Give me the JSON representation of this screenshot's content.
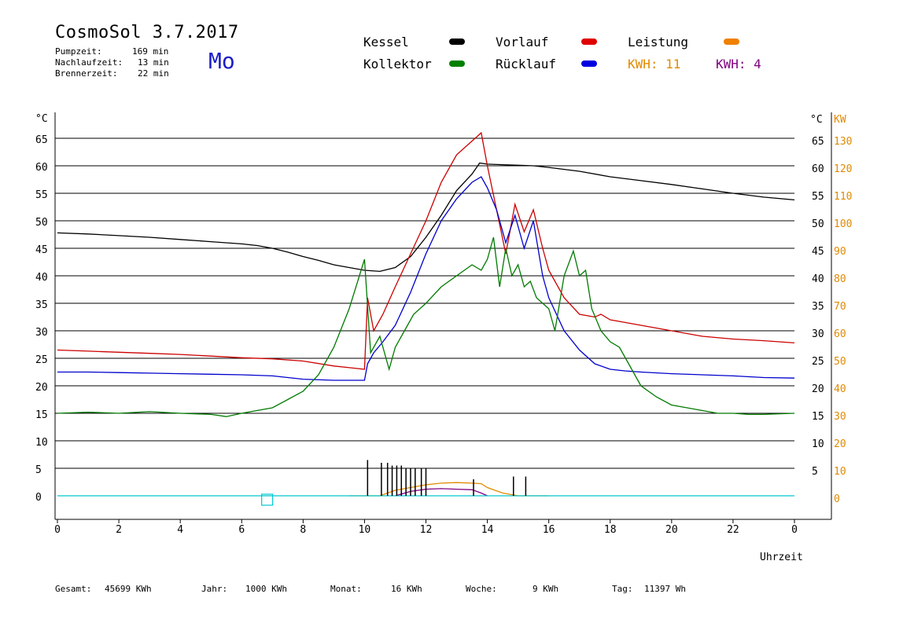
{
  "header": {
    "title": "CosmoSol 3.7.2017",
    "weekday": "Mo",
    "stats": [
      {
        "label": "Pumpzeit:",
        "value": "169 min"
      },
      {
        "label": "Nachlaufzeit:",
        "value": "13 min"
      },
      {
        "label": "Brennerzeit:",
        "value": "22 min"
      }
    ]
  },
  "legend": {
    "items": [
      {
        "label": "Kessel",
        "color": "#000000"
      },
      {
        "label": "Vorlauf",
        "color": "#e00000"
      },
      {
        "label": "Leistung",
        "color": "#f08000"
      },
      {
        "label": "Kollektor",
        "color": "#008000"
      },
      {
        "label": "Rücklauf",
        "color": "#0000e0"
      }
    ],
    "kwh_orange": "KWH: 11",
    "kwh_purple": "KWH: 4",
    "kwh_orange_color": "#e08a00",
    "kwh_purple_color": "#800080"
  },
  "footer": {
    "gesamt_label": "Gesamt:",
    "gesamt_value": "45699 KWh",
    "jahr_label": "Jahr:",
    "jahr_value": "1000 KWh",
    "monat_label": "Monat:",
    "monat_value": "16 KWh",
    "woche_label": "Woche:",
    "woche_value": "9 KWh",
    "tag_label": "Tag:",
    "tag_value": "11397 Wh"
  },
  "chart_data": {
    "type": "line",
    "xlabel": "Uhrzeit",
    "ylabel_left": "°C",
    "ylabel_right_1": "°C",
    "ylabel_right_2": "KW",
    "xlim": [
      0,
      24
    ],
    "ylim": [
      -4,
      70
    ],
    "grid": true,
    "x_tick_labels": [
      "0",
      "2",
      "4",
      "6",
      "8",
      "10",
      "12",
      "14",
      "16",
      "18",
      "20",
      "22",
      "0"
    ],
    "y_ticks_left": [
      0,
      5,
      10,
      15,
      20,
      25,
      30,
      35,
      40,
      45,
      50,
      55,
      60,
      65
    ],
    "y_ticks_right_c": [
      5,
      10,
      15,
      20,
      25,
      30,
      35,
      40,
      45,
      50,
      55,
      60,
      65
    ],
    "y_ticks_right_kw": [
      0,
      10,
      20,
      30,
      40,
      50,
      60,
      70,
      80,
      90,
      100,
      110,
      120,
      130
    ],
    "series": [
      {
        "name": "Kessel",
        "color": "#000000",
        "x": [
          0,
          1,
          2,
          3,
          4,
          5,
          6,
          6.5,
          7,
          7.5,
          8,
          8.5,
          9,
          9.5,
          10,
          10.5,
          11,
          11.5,
          12,
          12.5,
          13,
          13.5,
          13.75,
          14,
          14.5,
          15,
          15.5,
          16,
          17,
          18,
          19,
          20,
          21,
          22,
          23,
          24
        ],
        "y": [
          47.8,
          47.6,
          47.3,
          47,
          46.6,
          46.2,
          45.8,
          45.5,
          45,
          44.3,
          43.5,
          42.8,
          42,
          41.5,
          41,
          40.8,
          41.5,
          43.5,
          47,
          51,
          55.5,
          58.5,
          60.5,
          60.3,
          60.2,
          60.1,
          60,
          59.7,
          59,
          58,
          57.3,
          56.6,
          55.8,
          55,
          54.3,
          53.8
        ]
      },
      {
        "name": "Vorlauf",
        "color": "#cc0000",
        "x": [
          0,
          1,
          2,
          3,
          4,
          5,
          6,
          7,
          8,
          9,
          9.5,
          10,
          10.1,
          10.3,
          10.6,
          11,
          11.5,
          12,
          12.5,
          13,
          13.5,
          13.8,
          14,
          14.3,
          14.6,
          14.9,
          15.2,
          15.5,
          15.8,
          16,
          16.5,
          17,
          17.5,
          17.7,
          18,
          18.5,
          19,
          20,
          21,
          22,
          23,
          24
        ],
        "y": [
          26.5,
          26.3,
          26.1,
          25.9,
          25.7,
          25.4,
          25.1,
          24.9,
          24.5,
          23.6,
          23.3,
          23,
          36,
          30,
          33,
          38,
          44,
          50,
          57,
          62,
          64.5,
          66,
          60,
          52,
          44,
          53,
          48,
          52,
          45,
          41,
          36,
          33,
          32.5,
          33,
          32,
          31.5,
          31,
          30,
          29,
          28.5,
          28.2,
          27.8
        ]
      },
      {
        "name": "Rücklauf",
        "color": "#0000cc",
        "x": [
          0,
          1,
          2,
          3,
          4,
          5,
          6,
          7,
          8,
          9,
          9.5,
          10,
          10.1,
          10.3,
          10.6,
          11,
          11.5,
          12,
          12.5,
          13,
          13.5,
          13.8,
          14,
          14.3,
          14.6,
          14.9,
          15.2,
          15.5,
          15.8,
          16,
          16.5,
          17,
          17.5,
          18,
          18.5,
          19,
          20,
          21,
          22,
          23,
          24
        ],
        "y": [
          22.5,
          22.5,
          22.4,
          22.3,
          22.2,
          22.1,
          22,
          21.8,
          21.2,
          21,
          21,
          21,
          24,
          26,
          28,
          31,
          37,
          44,
          50,
          54,
          57,
          58,
          56,
          52,
          46,
          51,
          45,
          50,
          40,
          36,
          30,
          26.5,
          24,
          23,
          22.7,
          22.5,
          22.2,
          22,
          21.8,
          21.5,
          21.4
        ]
      },
      {
        "name": "Kollektor",
        "color": "#007a00",
        "x": [
          0,
          1,
          2,
          3,
          4,
          5,
          5.5,
          6,
          7,
          7.5,
          8,
          8.5,
          9,
          9.5,
          10,
          10.2,
          10.5,
          10.8,
          11,
          11.3,
          11.6,
          12,
          12.5,
          13,
          13.5,
          13.8,
          14,
          14.2,
          14.4,
          14.6,
          14.8,
          15,
          15.2,
          15.4,
          15.6,
          15.8,
          16,
          16.2,
          16.5,
          16.8,
          17,
          17.2,
          17.4,
          17.7,
          18,
          18.3,
          18.6,
          19,
          19.5,
          20,
          20.5,
          21,
          21.5,
          22,
          22.5,
          23,
          24
        ],
        "y": [
          15,
          15.2,
          15,
          15.3,
          15,
          14.8,
          14.4,
          15,
          16,
          17.5,
          19,
          22,
          27,
          34,
          43,
          26,
          29,
          23,
          27,
          30,
          33,
          35,
          38,
          40,
          42,
          41,
          43,
          47,
          38,
          45,
          40,
          42,
          38,
          39,
          36,
          35,
          34,
          30,
          40,
          44.5,
          40,
          41,
          34,
          30,
          28,
          27,
          24,
          20,
          18,
          16.5,
          16,
          15.5,
          15,
          15,
          14.8,
          14.8,
          15
        ]
      },
      {
        "name": "Leistung",
        "color": "#e08a00",
        "x": [
          9.5,
          10,
          10.5,
          11,
          11.5,
          12,
          12.5,
          13,
          13.5,
          13.8,
          14,
          14.5,
          15,
          15.5,
          16
        ],
        "y": [
          0,
          0,
          0,
          1,
          1.5,
          2,
          2.3,
          2.4,
          2.3,
          2.2,
          1.5,
          0.5,
          0,
          0,
          0
        ]
      },
      {
        "name": "KWH-4",
        "color": "#800080",
        "x": [
          11,
          11.5,
          12,
          12.5,
          13,
          13.5,
          13.8,
          14
        ],
        "y": [
          0,
          0.8,
          1.2,
          1.3,
          1.2,
          1.1,
          0.5,
          0
        ]
      },
      {
        "name": "Brenner",
        "color": "#00c8d0",
        "x": [
          0,
          24
        ],
        "y": [
          0,
          0
        ]
      }
    ],
    "burner_spikes_x": [
      10.1,
      10.55,
      10.75,
      10.9,
      11.05,
      11.2,
      11.35,
      11.5,
      11.65,
      11.85,
      12.0,
      13.55,
      14.85,
      15.25
    ],
    "burner_spikes_y": [
      6.5,
      6,
      6,
      5.5,
      5.5,
      5.5,
      5,
      5,
      5,
      5,
      5,
      3,
      3.5,
      3.5
    ]
  }
}
